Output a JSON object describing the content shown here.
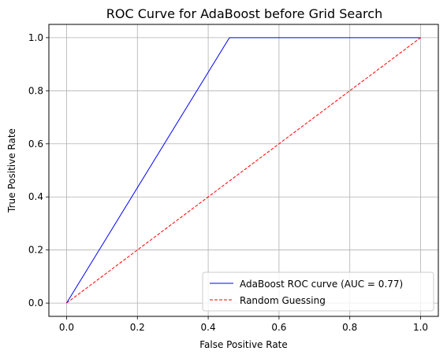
{
  "chart_data": {
    "type": "line",
    "title": "ROC Curve for AdaBoost before Grid Search",
    "xlabel": "False Positive Rate",
    "ylabel": "True Positive Rate",
    "xlim": [
      -0.05,
      1.05
    ],
    "ylim": [
      -0.05,
      1.05
    ],
    "x_ticks": [
      0.0,
      0.2,
      0.4,
      0.6,
      0.8,
      1.0
    ],
    "y_ticks": [
      0.0,
      0.2,
      0.4,
      0.6,
      0.8,
      1.0
    ],
    "x_tick_labels": [
      "0.0",
      "0.2",
      "0.4",
      "0.6",
      "0.8",
      "1.0"
    ],
    "y_tick_labels": [
      "0.0",
      "0.2",
      "0.4",
      "0.6",
      "0.8",
      "1.0"
    ],
    "grid": true,
    "legend_position": "lower right",
    "series": [
      {
        "name": "AdaBoost ROC curve (AUC = 0.77)",
        "color": "#0000ff",
        "style": "solid",
        "x": [
          0.0,
          0.46,
          1.0
        ],
        "y": [
          0.0,
          1.0,
          1.0
        ]
      },
      {
        "name": "Random Guessing",
        "color": "#ff0000",
        "style": "dashed",
        "x": [
          0.0,
          1.0
        ],
        "y": [
          0.0,
          1.0
        ]
      }
    ]
  }
}
